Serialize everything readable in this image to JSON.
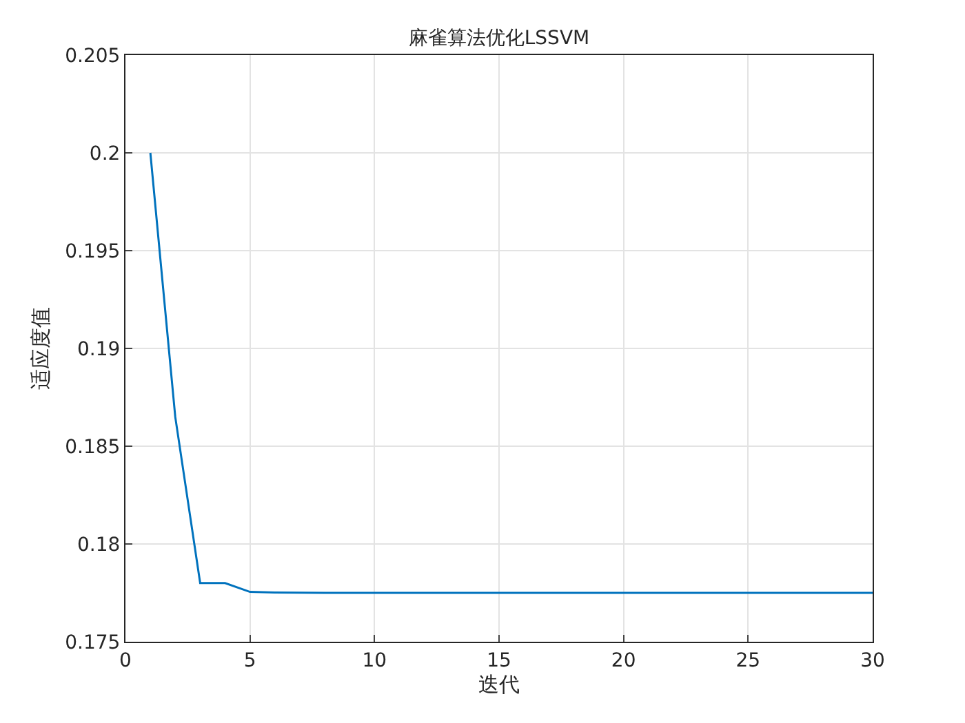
{
  "chart_data": {
    "type": "line",
    "title": "麻雀算法优化LSSVM",
    "xlabel": "迭代",
    "ylabel": "适应度值",
    "x": [
      1,
      2,
      3,
      4,
      5,
      6,
      7,
      8,
      9,
      10,
      11,
      12,
      13,
      14,
      15,
      16,
      17,
      18,
      19,
      20,
      21,
      22,
      23,
      24,
      25,
      26,
      27,
      28,
      29,
      30
    ],
    "series": [
      {
        "color": "#0072bd",
        "values": [
          0.2,
          0.1865,
          0.178,
          0.178,
          0.17755,
          0.17752,
          0.17751,
          0.1775,
          0.1775,
          0.1775,
          0.1775,
          0.1775,
          0.1775,
          0.1775,
          0.1775,
          0.1775,
          0.1775,
          0.1775,
          0.1775,
          0.1775,
          0.1775,
          0.1775,
          0.1775,
          0.1775,
          0.1775,
          0.1775,
          0.1775,
          0.1775,
          0.1775,
          0.1775
        ]
      }
    ],
    "xlim": [
      0,
      30
    ],
    "xticks": [
      0,
      5,
      10,
      15,
      20,
      25,
      30
    ],
    "ylim": [
      0.175,
      0.205
    ],
    "yticks": [
      0.175,
      0.18,
      0.185,
      0.19,
      0.195,
      0.2,
      0.205
    ],
    "grid": true
  }
}
